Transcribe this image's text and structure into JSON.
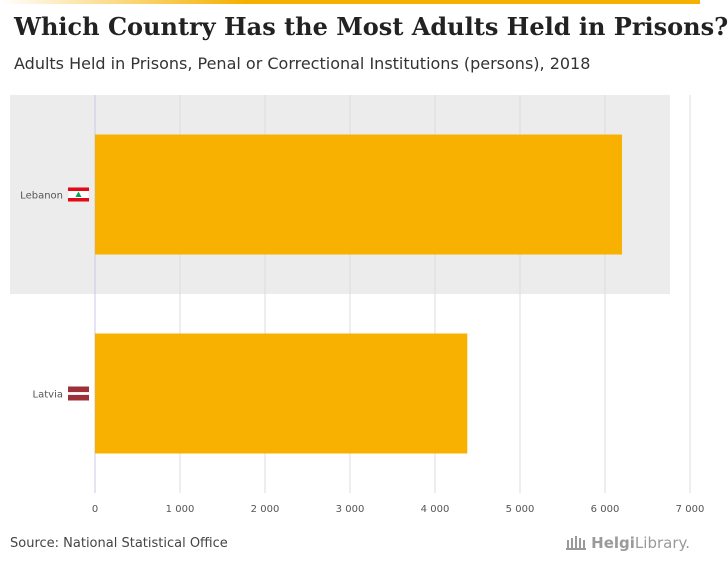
{
  "header": {
    "title": "Which Country Has the Most Adults Held in Prisons?",
    "subtitle": "Adults Held in Prisons, Penal or Correctional Institutions (persons), 2018"
  },
  "footer": {
    "source": "Source: National Statistical Office",
    "logo_prefix": "Helgi",
    "logo_suffix": "Library."
  },
  "colors": {
    "bar": "#f8b100",
    "highlight_band": "#ececec",
    "grid": "#dddddd",
    "axis_text": "#555555"
  },
  "chart_data": {
    "type": "bar",
    "orientation": "horizontal",
    "title": "Which Country Has the Most Adults Held in Prisons?",
    "subtitle": "Adults Held in Prisons, Penal or Correctional Institutions (persons), 2018",
    "categories": [
      "Lebanon",
      "Latvia"
    ],
    "values": [
      6200,
      4380
    ],
    "xlim": [
      0,
      7000
    ],
    "xticks": [
      0,
      1000,
      2000,
      3000,
      4000,
      5000,
      6000,
      7000
    ],
    "xtick_labels": [
      "0",
      "1 000",
      "2 000",
      "3 000",
      "4 000",
      "5 000",
      "6 000",
      "7 000"
    ],
    "highlighted_category": "Lebanon",
    "grid": true,
    "legend": "none",
    "flags": [
      "lebanon-flag-icon",
      "latvia-flag-icon"
    ]
  }
}
